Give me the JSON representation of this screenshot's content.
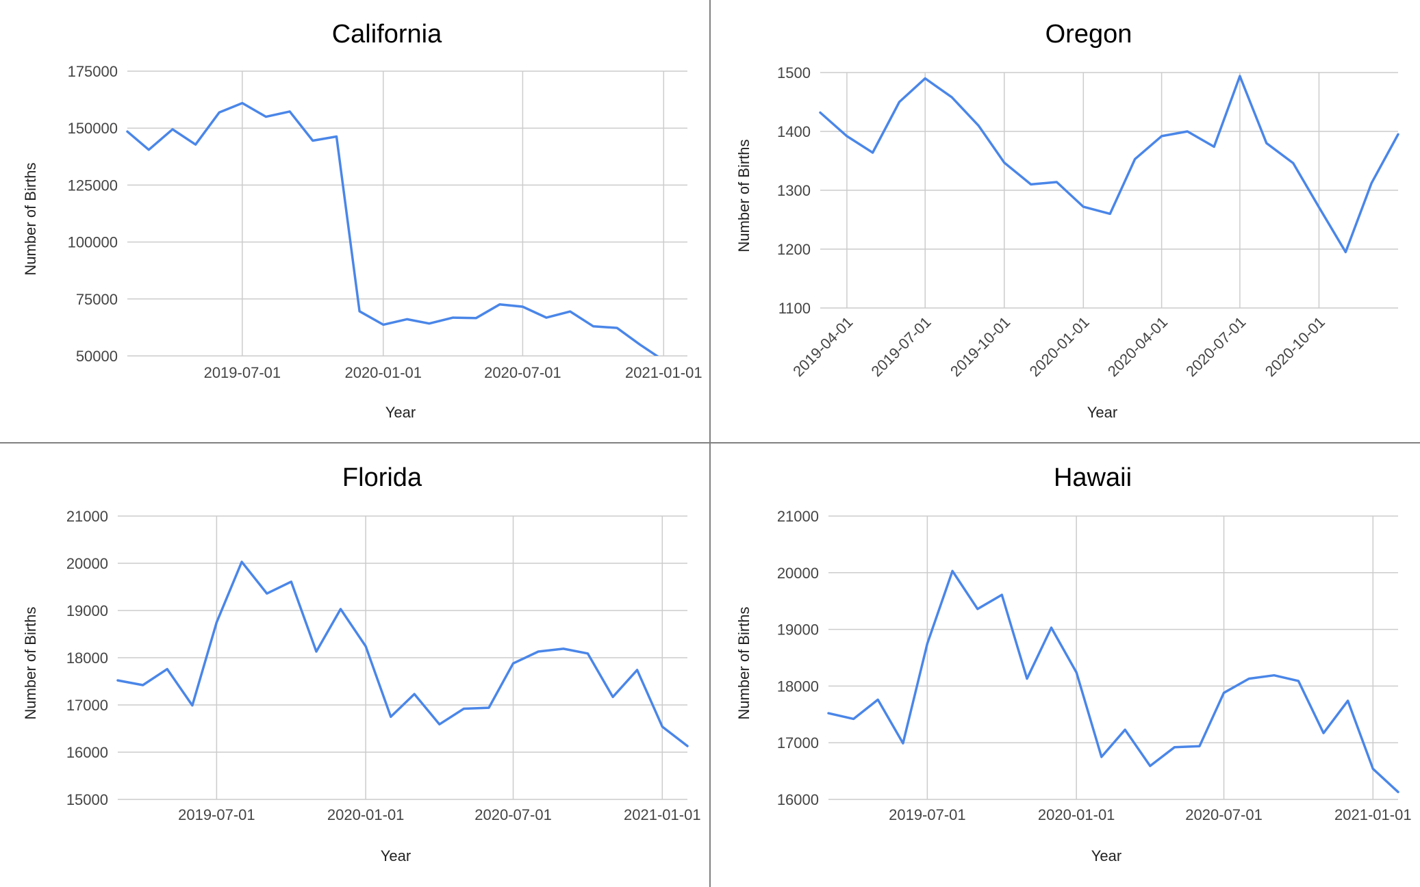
{
  "chart_data": [
    {
      "id": "ca",
      "type": "line",
      "title": "California",
      "xlabel": "Year",
      "ylabel": "Number of Births",
      "x_tick_labels": [
        "2019-07-01",
        "2020-01-01",
        "2020-07-01",
        "2021-01-01"
      ],
      "y_tick_labels": [
        "50000",
        "75000",
        "100000",
        "125000",
        "150000",
        "175000"
      ],
      "ylim": [
        50000,
        175000
      ],
      "xlim": [
        "2019-02-01",
        "2021-02-01"
      ],
      "grid": true,
      "x_label_rotation": 0,
      "series": [
        {
          "x": [
            "2019-02-01",
            "2019-03-01",
            "2019-04-01",
            "2019-05-01",
            "2019-06-01",
            "2019-07-01",
            "2019-08-01",
            "2019-09-01",
            "2019-10-01",
            "2019-11-01",
            "2019-12-01",
            "2020-01-01",
            "2020-02-01",
            "2020-03-01",
            "2020-04-01",
            "2020-05-01",
            "2020-06-01",
            "2020-07-01",
            "2020-08-01",
            "2020-09-01",
            "2020-10-01",
            "2020-11-01",
            "2020-12-01",
            "2021-01-01",
            "2021-02-01"
          ],
          "values": [
            148500,
            140500,
            149500,
            142800,
            156900,
            161000,
            155000,
            157300,
            144500,
            146300,
            69600,
            63700,
            66100,
            64200,
            66800,
            66600,
            72600,
            71600,
            66800,
            69500,
            63000,
            62300,
            55000,
            48000,
            42000
          ]
        }
      ]
    },
    {
      "id": "or",
      "type": "line",
      "title": "Oregon",
      "xlabel": "Year",
      "ylabel": "Number of Births",
      "x_tick_labels": [
        "2019-04-01",
        "2019-07-01",
        "2019-10-01",
        "2020-01-01",
        "2020-04-01",
        "2020-07-01",
        "2020-10-01"
      ],
      "y_tick_labels": [
        "1100",
        "1200",
        "1300",
        "1400",
        "1500"
      ],
      "ylim": [
        1100,
        1500
      ],
      "xlim": [
        "2019-03-01",
        "2021-01-01"
      ],
      "grid": true,
      "x_label_rotation": -45,
      "series": [
        {
          "x": [
            "2019-03-01",
            "2019-04-01",
            "2019-05-01",
            "2019-06-01",
            "2019-07-01",
            "2019-08-01",
            "2019-09-01",
            "2019-10-01",
            "2019-11-01",
            "2019-12-01",
            "2020-01-01",
            "2020-02-01",
            "2020-03-01",
            "2020-04-01",
            "2020-05-01",
            "2020-06-01",
            "2020-07-01",
            "2020-08-01",
            "2020-09-01",
            "2020-10-01",
            "2020-11-01",
            "2020-12-01",
            "2021-01-01"
          ],
          "values": [
            1432,
            1392,
            1364,
            1450,
            1490,
            1458,
            1410,
            1347,
            1310,
            1314,
            1272,
            1260,
            1353,
            1392,
            1400,
            1374,
            1494,
            1380,
            1346,
            1271,
            1195,
            1312,
            1395
          ]
        }
      ]
    },
    {
      "id": "fl",
      "type": "line",
      "title": "Florida",
      "xlabel": "Year",
      "ylabel": "Number of Births",
      "x_tick_labels": [
        "2019-07-01",
        "2020-01-01",
        "2020-07-01",
        "2021-01-01"
      ],
      "y_tick_labels": [
        "15000",
        "16000",
        "17000",
        "18000",
        "19000",
        "20000",
        "21000"
      ],
      "ylim": [
        15000,
        21000
      ],
      "xlim": [
        "2019-03-01",
        "2021-02-01"
      ],
      "grid": true,
      "x_label_rotation": 0,
      "series": [
        {
          "x": [
            "2019-03-01",
            "2019-04-01",
            "2019-05-01",
            "2019-06-01",
            "2019-07-01",
            "2019-08-01",
            "2019-09-01",
            "2019-10-01",
            "2019-11-01",
            "2019-12-01",
            "2020-01-01",
            "2020-02-01",
            "2020-03-01",
            "2020-04-01",
            "2020-05-01",
            "2020-06-01",
            "2020-07-01",
            "2020-08-01",
            "2020-09-01",
            "2020-10-01",
            "2020-11-01",
            "2020-12-01",
            "2021-01-01",
            "2021-02-01"
          ],
          "values": [
            17520,
            17420,
            17760,
            16990,
            18750,
            20030,
            19360,
            19610,
            18130,
            19030,
            18240,
            16750,
            17230,
            16590,
            16920,
            16940,
            17880,
            18130,
            18190,
            18090,
            17170,
            17740,
            16540,
            16130
          ]
        }
      ]
    },
    {
      "id": "hi",
      "type": "line",
      "title": "Hawaii",
      "xlabel": "Year",
      "ylabel": "Number of Births",
      "x_tick_labels": [
        "2019-07-01",
        "2020-01-01",
        "2020-07-01",
        "2021-01-01"
      ],
      "y_tick_labels": [
        "16000",
        "17000",
        "18000",
        "19000",
        "20000",
        "21000"
      ],
      "ylim": [
        16000,
        21000
      ],
      "xlim": [
        "2019-03-01",
        "2021-02-01"
      ],
      "grid": true,
      "x_label_rotation": 0,
      "series": [
        {
          "x": [
            "2019-03-01",
            "2019-04-01",
            "2019-05-01",
            "2019-06-01",
            "2019-07-01",
            "2019-08-01",
            "2019-09-01",
            "2019-10-01",
            "2019-11-01",
            "2019-12-01",
            "2020-01-01",
            "2020-02-01",
            "2020-03-01",
            "2020-04-01",
            "2020-05-01",
            "2020-06-01",
            "2020-07-01",
            "2020-08-01",
            "2020-09-01",
            "2020-10-01",
            "2020-11-01",
            "2020-12-01",
            "2021-01-01",
            "2021-02-01"
          ],
          "values": [
            17520,
            17420,
            17760,
            16990,
            18750,
            20030,
            19360,
            19610,
            18130,
            19030,
            18240,
            16750,
            17230,
            16590,
            16920,
            16940,
            17880,
            18130,
            18190,
            18090,
            17170,
            17740,
            16540,
            16130
          ]
        }
      ]
    }
  ],
  "style": {
    "line_color": "#4a86e8",
    "grid_color": "#cccccc",
    "divider_color": "#808080"
  }
}
